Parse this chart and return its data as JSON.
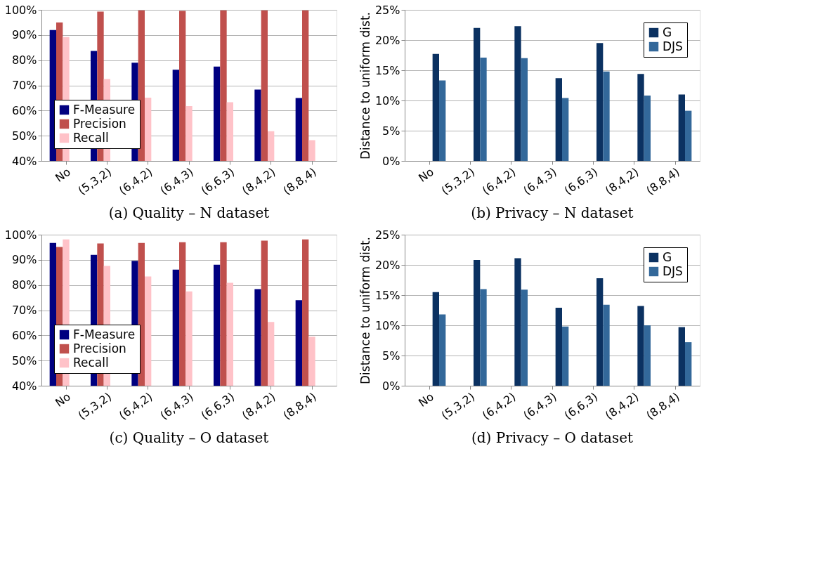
{
  "chart_data": [
    {
      "type": "bar",
      "title": "(a) Quality – N dataset",
      "categories": [
        "No",
        "(5,3,2)",
        "(6,4,2)",
        "(6,4,3)",
        "(6,6,3)",
        "(8,4,2)",
        "(8,8,4)"
      ],
      "series": [
        {
          "name": "F-Measure",
          "color": "#000080",
          "values": [
            92,
            83.7,
            79,
            76.2,
            77.5,
            68.3,
            65
          ]
        },
        {
          "name": "Precision",
          "color": "#c0504d",
          "values": [
            95,
            99.3,
            99.8,
            99.6,
            99.8,
            99.8,
            99.8
          ]
        },
        {
          "name": "Recall",
          "color": "#ffc2c8",
          "values": [
            89.2,
            72.5,
            65.1,
            61.8,
            63.3,
            51.8,
            48.2
          ]
        }
      ],
      "ylim": [
        40,
        100
      ],
      "yticks": [
        {
          "value": 40,
          "label": "40%"
        },
        {
          "value": 50,
          "label": "50%"
        },
        {
          "value": 60,
          "label": "60%"
        },
        {
          "value": 70,
          "label": "70%"
        },
        {
          "value": 80,
          "label": "80%"
        },
        {
          "value": 90,
          "label": "90%"
        },
        {
          "value": 100,
          "label": "100%"
        }
      ],
      "grid": "y",
      "legend": "bottom left"
    },
    {
      "type": "bar",
      "title": "(b) Privacy – N dataset",
      "ylabel": "Distance to uniform dist.",
      "categories": [
        "No",
        "(5,3,2)",
        "(6,4,2)",
        "(6,4,3)",
        "(6,6,3)",
        "(8,4,2)",
        "(8,8,4)"
      ],
      "series": [
        {
          "name": "G",
          "color": "#0b3161",
          "values": [
            17.7,
            22,
            22.3,
            13.7,
            19.5,
            14.4,
            11
          ]
        },
        {
          "name": "DJS",
          "color": "#33689a",
          "values": [
            13.3,
            17.1,
            17,
            10.4,
            14.8,
            10.8,
            8.3
          ]
        }
      ],
      "ylim": [
        0,
        25
      ],
      "yticks": [
        {
          "value": 0,
          "label": "0%"
        },
        {
          "value": 5,
          "label": "5%"
        },
        {
          "value": 10,
          "label": "10%"
        },
        {
          "value": 15,
          "label": "15%"
        },
        {
          "value": 20,
          "label": "20%"
        },
        {
          "value": 25,
          "label": "25%"
        }
      ],
      "grid": "y",
      "legend": "top right"
    },
    {
      "type": "bar",
      "title": "(c) Quality – O dataset",
      "categories": [
        "No",
        "(5,3,2)",
        "(6,4,2)",
        "(6,4,3)",
        "(6,6,3)",
        "(8,4,2)",
        "(8,8,4)"
      ],
      "series": [
        {
          "name": "F-Measure",
          "color": "#000080",
          "values": [
            96.7,
            92,
            89.6,
            86.1,
            88.1,
            78.4,
            74
          ]
        },
        {
          "name": "Precision",
          "color": "#c0504d",
          "values": [
            95.1,
            96.5,
            96.7,
            97,
            97,
            97.6,
            98.1
          ]
        },
        {
          "name": "Recall",
          "color": "#ffc2c8",
          "values": [
            98.1,
            87.6,
            83.4,
            77.5,
            80.9,
            65.3,
            59.5
          ]
        }
      ],
      "ylim": [
        40,
        100
      ],
      "yticks": [
        {
          "value": 40,
          "label": "40%"
        },
        {
          "value": 50,
          "label": "50%"
        },
        {
          "value": 60,
          "label": "60%"
        },
        {
          "value": 70,
          "label": "70%"
        },
        {
          "value": 80,
          "label": "80%"
        },
        {
          "value": 90,
          "label": "90%"
        },
        {
          "value": 100,
          "label": "100%"
        }
      ],
      "grid": "y",
      "legend": "bottom left"
    },
    {
      "type": "bar",
      "title": "(d) Privacy – O dataset",
      "ylabel": "Distance to uniform dist.",
      "categories": [
        "No",
        "(5,3,2)",
        "(6,4,2)",
        "(6,4,3)",
        "(6,6,3)",
        "(8,4,2)",
        "(8,8,4)"
      ],
      "series": [
        {
          "name": "G",
          "color": "#0b3161",
          "values": [
            15.5,
            20.8,
            21.1,
            12.9,
            17.8,
            13.2,
            9.7
          ]
        },
        {
          "name": "DJS",
          "color": "#33689a",
          "values": [
            11.8,
            16,
            15.9,
            9.8,
            13.4,
            10,
            7.2
          ]
        }
      ],
      "ylim": [
        0,
        25
      ],
      "yticks": [
        {
          "value": 0,
          "label": "0%"
        },
        {
          "value": 5,
          "label": "5%"
        },
        {
          "value": 10,
          "label": "10%"
        },
        {
          "value": 15,
          "label": "15%"
        },
        {
          "value": 20,
          "label": "20%"
        },
        {
          "value": 25,
          "label": "25%"
        }
      ],
      "grid": "y",
      "legend": "top right"
    }
  ]
}
